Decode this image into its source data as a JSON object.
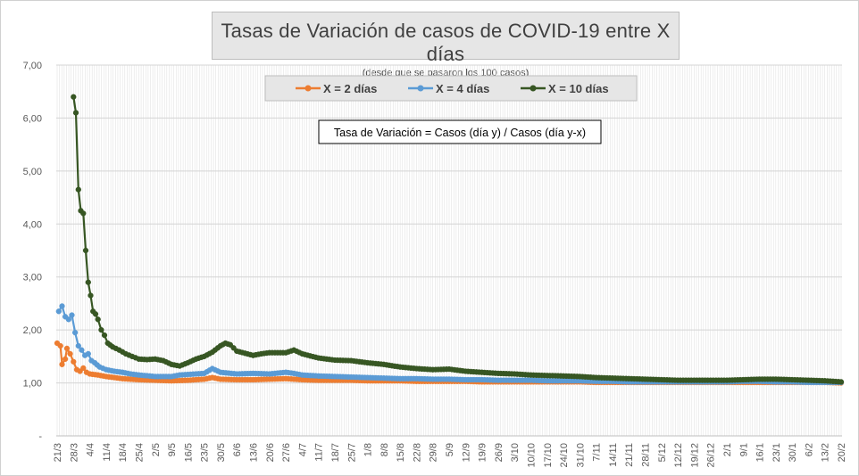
{
  "chart_data": {
    "type": "line",
    "title": "Tasas de Variación de casos de COVID-19 entre X días",
    "subtitle": "(desde que se pasaron los 100 casos)",
    "annotation": "Tasa de Variación = Casos (día y) / Casos (día y-x)",
    "ylim": [
      0,
      7
    ],
    "y_ticks": [
      {
        "value": 0,
        "label": "-"
      },
      {
        "value": 1,
        "label": "1,00"
      },
      {
        "value": 2,
        "label": "2,00"
      },
      {
        "value": 3,
        "label": "3,00"
      },
      {
        "value": 4,
        "label": "4,00"
      },
      {
        "value": 5,
        "label": "5,00"
      },
      {
        "value": 6,
        "label": "6,00"
      },
      {
        "value": 7,
        "label": "7,00"
      }
    ],
    "grid": true,
    "legend_position": "top-center",
    "x_labels": [
      "21/3",
      "28/3",
      "4/4",
      "11/4",
      "18/4",
      "25/4",
      "2/5",
      "9/5",
      "16/5",
      "23/5",
      "30/5",
      "6/6",
      "13/6",
      "20/6",
      "27/6",
      "4/7",
      "11/7",
      "18/7",
      "25/7",
      "1/8",
      "8/8",
      "15/8",
      "22/8",
      "29/8",
      "5/9",
      "12/9",
      "19/9",
      "26/9",
      "3/10",
      "10/10",
      "17/10",
      "24/10",
      "31/10",
      "7/11",
      "14/11",
      "21/11",
      "28/11",
      "5/12",
      "12/12",
      "19/12",
      "26/12",
      "2/1",
      "9/1",
      "16/1",
      "23/1",
      "30/1",
      "6/2",
      "13/2",
      "20/2"
    ],
    "series": [
      {
        "name": "X = 2 días",
        "color": "#ed7d31",
        "points": [
          [
            0,
            1.75
          ],
          [
            0.2,
            1.7
          ],
          [
            0.3,
            1.35
          ],
          [
            0.5,
            1.45
          ],
          [
            0.6,
            1.65
          ],
          [
            0.8,
            1.55
          ],
          [
            1,
            1.4
          ],
          [
            1.2,
            1.25
          ],
          [
            1.4,
            1.22
          ],
          [
            1.6,
            1.28
          ],
          [
            1.8,
            1.2
          ],
          [
            2,
            1.17
          ],
          [
            2.5,
            1.15
          ],
          [
            3,
            1.12
          ],
          [
            3.5,
            1.1
          ],
          [
            4,
            1.08
          ],
          [
            5,
            1.06
          ],
          [
            6,
            1.05
          ],
          [
            7,
            1.04
          ],
          [
            8,
            1.05
          ],
          [
            9,
            1.07
          ],
          [
            9.5,
            1.1
          ],
          [
            10,
            1.07
          ],
          [
            11,
            1.06
          ],
          [
            12,
            1.06
          ],
          [
            13,
            1.07
          ],
          [
            14,
            1.08
          ],
          [
            15,
            1.06
          ],
          [
            16,
            1.05
          ],
          [
            17,
            1.05
          ],
          [
            18,
            1.05
          ],
          [
            19,
            1.04
          ],
          [
            20,
            1.04
          ],
          [
            21,
            1.04
          ],
          [
            22,
            1.03
          ],
          [
            23,
            1.03
          ],
          [
            24,
            1.03
          ],
          [
            25,
            1.03
          ],
          [
            26,
            1.02
          ],
          [
            27,
            1.02
          ],
          [
            28,
            1.02
          ],
          [
            29,
            1.02
          ],
          [
            30,
            1.02
          ],
          [
            31,
            1.02
          ],
          [
            32,
            1.02
          ],
          [
            33,
            1.01
          ],
          [
            34,
            1.01
          ],
          [
            35,
            1.01
          ],
          [
            36,
            1.01
          ],
          [
            37,
            1.01
          ],
          [
            38,
            1.01
          ],
          [
            39,
            1.01
          ],
          [
            40,
            1.01
          ],
          [
            41,
            1.01
          ],
          [
            42,
            1.01
          ],
          [
            43,
            1.01
          ],
          [
            44,
            1.01
          ],
          [
            45,
            1.01
          ],
          [
            46,
            1.01
          ],
          [
            47,
            1.01
          ],
          [
            48,
            1.0
          ]
        ]
      },
      {
        "name": "X = 4 días",
        "color": "#5b9bd5",
        "points": [
          [
            0.1,
            2.35
          ],
          [
            0.3,
            2.45
          ],
          [
            0.5,
            2.25
          ],
          [
            0.7,
            2.2
          ],
          [
            0.9,
            2.28
          ],
          [
            1.1,
            1.95
          ],
          [
            1.3,
            1.7
          ],
          [
            1.5,
            1.62
          ],
          [
            1.7,
            1.52
          ],
          [
            1.9,
            1.55
          ],
          [
            2.1,
            1.42
          ],
          [
            2.3,
            1.38
          ],
          [
            2.6,
            1.3
          ],
          [
            3,
            1.25
          ],
          [
            3.5,
            1.22
          ],
          [
            4,
            1.2
          ],
          [
            4.5,
            1.17
          ],
          [
            5,
            1.15
          ],
          [
            6,
            1.12
          ],
          [
            7,
            1.12
          ],
          [
            7.5,
            1.15
          ],
          [
            8,
            1.16
          ],
          [
            9,
            1.18
          ],
          [
            9.5,
            1.27
          ],
          [
            10,
            1.2
          ],
          [
            11,
            1.17
          ],
          [
            12,
            1.18
          ],
          [
            13,
            1.17
          ],
          [
            14,
            1.2
          ],
          [
            14.5,
            1.18
          ],
          [
            15,
            1.15
          ],
          [
            16,
            1.13
          ],
          [
            17,
            1.12
          ],
          [
            18,
            1.11
          ],
          [
            19,
            1.1
          ],
          [
            20,
            1.09
          ],
          [
            21,
            1.08
          ],
          [
            22,
            1.08
          ],
          [
            23,
            1.07
          ],
          [
            24,
            1.07
          ],
          [
            25,
            1.06
          ],
          [
            26,
            1.06
          ],
          [
            27,
            1.05
          ],
          [
            28,
            1.05
          ],
          [
            29,
            1.05
          ],
          [
            30,
            1.04
          ],
          [
            31,
            1.04
          ],
          [
            32,
            1.04
          ],
          [
            33,
            1.03
          ],
          [
            34,
            1.03
          ],
          [
            35,
            1.02
          ],
          [
            36,
            1.02
          ],
          [
            37,
            1.02
          ],
          [
            38,
            1.02
          ],
          [
            39,
            1.02
          ],
          [
            40,
            1.02
          ],
          [
            41,
            1.02
          ],
          [
            42,
            1.03
          ],
          [
            43,
            1.03
          ],
          [
            44,
            1.02
          ],
          [
            45,
            1.02
          ],
          [
            46,
            1.01
          ],
          [
            47,
            1.01
          ],
          [
            48,
            1.01
          ]
        ]
      },
      {
        "name": "X = 10 días",
        "color": "#375623",
        "points": [
          [
            1,
            6.4
          ],
          [
            1.15,
            6.1
          ],
          [
            1.3,
            4.65
          ],
          [
            1.45,
            4.25
          ],
          [
            1.6,
            4.2
          ],
          [
            1.75,
            3.5
          ],
          [
            1.9,
            2.9
          ],
          [
            2.05,
            2.65
          ],
          [
            2.2,
            2.35
          ],
          [
            2.35,
            2.3
          ],
          [
            2.5,
            2.2
          ],
          [
            2.7,
            2.0
          ],
          [
            2.9,
            1.9
          ],
          [
            3.1,
            1.75
          ],
          [
            3.4,
            1.68
          ],
          [
            3.8,
            1.62
          ],
          [
            4.2,
            1.55
          ],
          [
            4.6,
            1.5
          ],
          [
            5,
            1.45
          ],
          [
            5.5,
            1.44
          ],
          [
            6,
            1.45
          ],
          [
            6.5,
            1.42
          ],
          [
            7,
            1.35
          ],
          [
            7.5,
            1.32
          ],
          [
            8,
            1.38
          ],
          [
            8.5,
            1.45
          ],
          [
            9,
            1.5
          ],
          [
            9.5,
            1.58
          ],
          [
            10,
            1.7
          ],
          [
            10.3,
            1.75
          ],
          [
            10.6,
            1.72
          ],
          [
            11,
            1.6
          ],
          [
            12,
            1.52
          ],
          [
            12.5,
            1.55
          ],
          [
            13,
            1.57
          ],
          [
            14,
            1.57
          ],
          [
            14.5,
            1.62
          ],
          [
            15,
            1.55
          ],
          [
            16,
            1.47
          ],
          [
            17,
            1.43
          ],
          [
            18,
            1.42
          ],
          [
            19,
            1.38
          ],
          [
            20,
            1.35
          ],
          [
            21,
            1.3
          ],
          [
            22,
            1.27
          ],
          [
            23,
            1.25
          ],
          [
            24,
            1.26
          ],
          [
            25,
            1.22
          ],
          [
            26,
            1.2
          ],
          [
            27,
            1.18
          ],
          [
            28,
            1.17
          ],
          [
            29,
            1.15
          ],
          [
            30,
            1.14
          ],
          [
            31,
            1.13
          ],
          [
            32,
            1.12
          ],
          [
            33,
            1.1
          ],
          [
            34,
            1.09
          ],
          [
            35,
            1.08
          ],
          [
            36,
            1.07
          ],
          [
            37,
            1.06
          ],
          [
            38,
            1.05
          ],
          [
            39,
            1.05
          ],
          [
            40,
            1.05
          ],
          [
            41,
            1.05
          ],
          [
            42,
            1.06
          ],
          [
            43,
            1.07
          ],
          [
            44,
            1.07
          ],
          [
            45,
            1.06
          ],
          [
            46,
            1.05
          ],
          [
            47,
            1.04
          ],
          [
            48,
            1.02
          ]
        ]
      }
    ]
  }
}
